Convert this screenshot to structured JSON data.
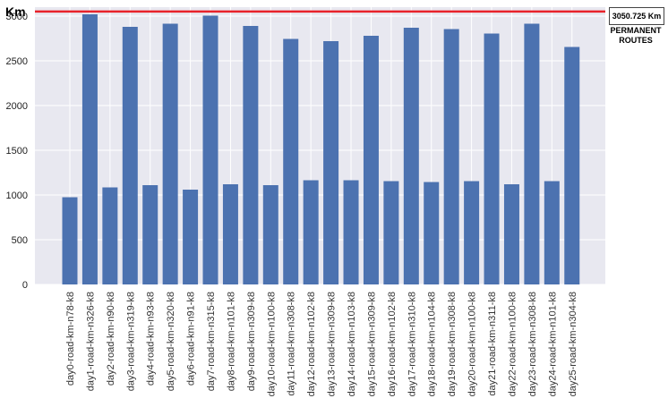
{
  "chart_data": {
    "type": "bar",
    "ylabel": "Km",
    "ylim": [
      0,
      3100
    ],
    "yticks": [
      0,
      500,
      1000,
      1500,
      2000,
      2500,
      3000
    ],
    "grid": true,
    "bar_color": "#4c72b0",
    "background_color": "#e8e8f0",
    "categories": [
      "day0-road-km-n78-k8",
      "day1-road-km-n326-k8",
      "day2-road-km-n90-k8",
      "day3-road-km-n319-k8",
      "day4-road-km-n93-k8",
      "day5-road-km-n320-k8",
      "day6-road-km-n91-k8",
      "day7-road-km-n315-k8",
      "day8-road-km-n101-k8",
      "day9-road-km-n309-k8",
      "day10-road-km-n100-k8",
      "day11-road-km-n308-k8",
      "day12-road-km-n102-k8",
      "day13-road-km-n309-k8",
      "day14-road-km-n103-k8",
      "day15-road-km-n309-k8",
      "day16-road-km-n102-k8",
      "day17-road-km-n310-k8",
      "day18-road-km-n104-k8",
      "day19-road-km-n308-k8",
      "day20-road-km-n100-k8",
      "day21-road-km-n311-k8",
      "day22-road-km-n100-k8",
      "day23-road-km-n308-k8",
      "day24-road-km-n101-k8",
      "day25-road-km-n304-k8"
    ],
    "values": [
      975,
      3020,
      1085,
      2880,
      1110,
      2915,
      1060,
      3005,
      1120,
      2890,
      1110,
      2745,
      1165,
      2720,
      1165,
      2780,
      1155,
      2870,
      1145,
      2855,
      1155,
      2805,
      1120,
      2915,
      1155,
      2655
    ],
    "reference_line": {
      "value": 3050.725,
      "color": "#e8222a",
      "label": "3050.725 Km",
      "caption": "PERMANENT\nROUTES"
    }
  }
}
